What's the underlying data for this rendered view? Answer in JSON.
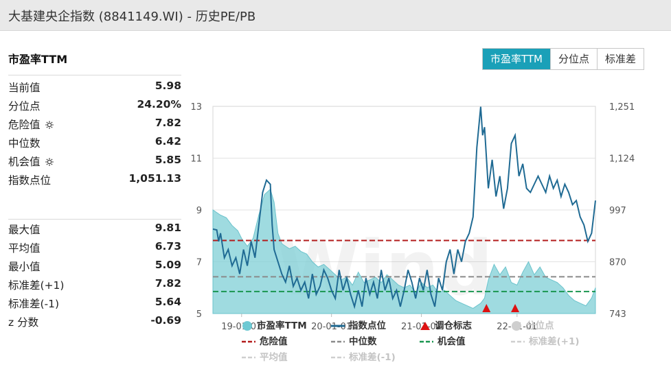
{
  "window": {
    "title": "大基建央企指数 (8841149.WI) - 历史PE/PB"
  },
  "panel": {
    "section_title": "市盈率TTM"
  },
  "tabs": [
    {
      "label": "市盈率TTM",
      "active": true
    },
    {
      "label": "分位点",
      "active": false
    },
    {
      "label": "标准差",
      "active": false
    }
  ],
  "stats_top": [
    {
      "label": "当前值",
      "value": "5.98"
    },
    {
      "label": "分位点",
      "value": "24.20%"
    },
    {
      "label": "危险值",
      "value": "7.82",
      "icon": "gear-icon"
    },
    {
      "label": "中位数",
      "value": "6.42"
    },
    {
      "label": "机会值",
      "value": "5.85",
      "icon": "gear-icon"
    },
    {
      "label": "指数点位",
      "value": "1,051.13"
    }
  ],
  "stats_bottom": [
    {
      "label": "最大值",
      "value": "9.81"
    },
    {
      "label": "平均值",
      "value": "6.73"
    },
    {
      "label": "最小值",
      "value": "5.09"
    },
    {
      "label": "标准差(+1)",
      "value": "7.82"
    },
    {
      "label": "标准差(-1)",
      "value": "5.64"
    },
    {
      "label": "z 分数",
      "value": "-0.69"
    }
  ],
  "chart_data": {
    "type": "area",
    "watermark": "Wind",
    "x_ticks": [
      "19-01-01",
      "20-01-01",
      "21-01-01",
      "22-01-01"
    ],
    "x_tick_t": [
      0.075,
      0.31,
      0.545,
      0.795
    ],
    "y_left": {
      "ticks": [
        "13",
        "11",
        "9",
        "7",
        "5"
      ],
      "range": [
        5,
        13
      ]
    },
    "y_right": {
      "ticks": [
        "1,251",
        "1,124",
        "997",
        "870",
        "743"
      ],
      "range": [
        743,
        1251
      ]
    },
    "pe_series": {
      "name": "市盈率TTM",
      "t": [
        0,
        0.01,
        0.02,
        0.035,
        0.05,
        0.065,
        0.075,
        0.09,
        0.105,
        0.12,
        0.135,
        0.15,
        0.16,
        0.17,
        0.18,
        0.19,
        0.2,
        0.215,
        0.23,
        0.245,
        0.26,
        0.275,
        0.29,
        0.305,
        0.32,
        0.335,
        0.35,
        0.365,
        0.38,
        0.395,
        0.41,
        0.425,
        0.44,
        0.455,
        0.47,
        0.485,
        0.5,
        0.515,
        0.53,
        0.545,
        0.56,
        0.575,
        0.59,
        0.605,
        0.62,
        0.635,
        0.65,
        0.665,
        0.68,
        0.69,
        0.7,
        0.71,
        0.72,
        0.735,
        0.75,
        0.765,
        0.78,
        0.795,
        0.81,
        0.825,
        0.84,
        0.855,
        0.87,
        0.885,
        0.9,
        0.915,
        0.93,
        0.945,
        0.96,
        0.975,
        0.99,
        1.0
      ],
      "values": [
        9.0,
        8.9,
        8.8,
        8.7,
        8.4,
        8.2,
        7.9,
        7.6,
        7.9,
        8.8,
        9.6,
        9.8,
        9.3,
        8.1,
        7.7,
        7.6,
        7.5,
        7.6,
        7.4,
        7.3,
        7.0,
        6.8,
        6.9,
        6.7,
        6.5,
        6.3,
        6.4,
        6.1,
        6.6,
        6.2,
        6.3,
        6.4,
        6.2,
        6.5,
        6.3,
        6.1,
        6.0,
        6.1,
        5.8,
        6.2,
        6.0,
        6.1,
        5.8,
        5.9,
        5.7,
        5.5,
        5.4,
        5.3,
        5.2,
        5.3,
        5.4,
        5.6,
        6.3,
        6.9,
        6.5,
        6.8,
        6.2,
        6.1,
        6.6,
        7.0,
        6.5,
        6.8,
        6.4,
        6.3,
        6.2,
        6.0,
        5.7,
        5.5,
        5.4,
        5.3,
        5.6,
        6.0
      ]
    },
    "index_series": {
      "name": "指数点位",
      "t": [
        0,
        0.01,
        0.015,
        0.02,
        0.03,
        0.04,
        0.05,
        0.06,
        0.07,
        0.08,
        0.09,
        0.1,
        0.11,
        0.12,
        0.13,
        0.14,
        0.15,
        0.155,
        0.16,
        0.17,
        0.18,
        0.19,
        0.2,
        0.21,
        0.22,
        0.23,
        0.24,
        0.25,
        0.26,
        0.27,
        0.28,
        0.29,
        0.3,
        0.31,
        0.32,
        0.33,
        0.34,
        0.35,
        0.36,
        0.37,
        0.38,
        0.39,
        0.4,
        0.41,
        0.42,
        0.43,
        0.44,
        0.45,
        0.46,
        0.47,
        0.48,
        0.49,
        0.5,
        0.51,
        0.52,
        0.53,
        0.54,
        0.55,
        0.56,
        0.57,
        0.58,
        0.59,
        0.6,
        0.61,
        0.62,
        0.63,
        0.64,
        0.65,
        0.66,
        0.67,
        0.68,
        0.69,
        0.7,
        0.705,
        0.71,
        0.72,
        0.73,
        0.74,
        0.75,
        0.76,
        0.77,
        0.78,
        0.79,
        0.8,
        0.81,
        0.82,
        0.83,
        0.84,
        0.85,
        0.86,
        0.87,
        0.88,
        0.89,
        0.9,
        0.91,
        0.92,
        0.93,
        0.94,
        0.95,
        0.96,
        0.97,
        0.98,
        0.99,
        1.0
      ],
      "values": [
        950,
        948,
        920,
        940,
        880,
        900,
        860,
        880,
        840,
        900,
        860,
        920,
        880,
        960,
        1040,
        1070,
        1060,
        960,
        900,
        870,
        840,
        820,
        860,
        810,
        830,
        800,
        820,
        780,
        840,
        790,
        810,
        850,
        830,
        800,
        780,
        850,
        800,
        830,
        790,
        760,
        800,
        760,
        830,
        790,
        820,
        780,
        850,
        800,
        830,
        780,
        800,
        760,
        800,
        850,
        820,
        780,
        830,
        800,
        850,
        790,
        760,
        830,
        800,
        870,
        900,
        840,
        900,
        870,
        920,
        940,
        980,
        1150,
        1250,
        1180,
        1200,
        1050,
        1120,
        1030,
        1080,
        1000,
        1050,
        1160,
        1180,
        1080,
        1110,
        1050,
        1040,
        1060,
        1080,
        1060,
        1040,
        1080,
        1050,
        1070,
        1030,
        1060,
        1040,
        1010,
        1020,
        980,
        960,
        920,
        940,
        1020
      ]
    },
    "reference_lines": {
      "danger": 7.82,
      "median": 6.42,
      "opportunity": 5.85
    },
    "rebalance_markers_t": [
      0.715,
      0.79
    ],
    "legend": [
      {
        "label": "市盈率TTM",
        "kind": "dot",
        "color": "#6ec9d3"
      },
      {
        "label": "指数点位",
        "kind": "line",
        "color": "#1f6a93"
      },
      {
        "label": "调仓标志",
        "kind": "triangle",
        "color": "#dd1111"
      },
      {
        "label": "分位点",
        "kind": "dot",
        "color": "#cfcfcf",
        "muted": true
      },
      {
        "label": "危险值",
        "kind": "dash",
        "color": "#b31b1b"
      },
      {
        "label": "中位数",
        "kind": "dash",
        "color": "#8a8a8a"
      },
      {
        "label": "机会值",
        "kind": "dash",
        "color": "#19954f"
      },
      {
        "label": "标准差(+1)",
        "kind": "dash",
        "color": "#cfcfcf",
        "muted": true
      },
      {
        "label": "平均值",
        "kind": "dash",
        "color": "#cfcfcf",
        "muted": true
      },
      {
        "label": "标准差(-1)",
        "kind": "dash",
        "color": "#cfcfcf",
        "muted": true
      }
    ]
  }
}
